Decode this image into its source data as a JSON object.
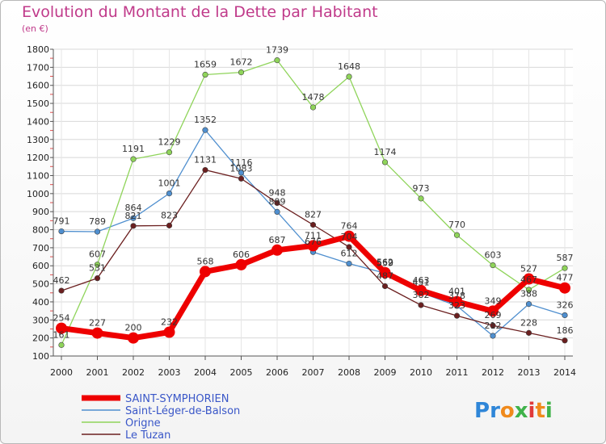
{
  "title": "Evolution du Montant de la Dette par Habitant",
  "subtitle": "(en €)",
  "brand": "Proxiti",
  "chart_data": {
    "type": "line",
    "title": "Evolution du Montant de la Dette par Habitant",
    "subtitle": "(en €)",
    "x": [
      2000,
      2001,
      2002,
      2003,
      2004,
      2005,
      2006,
      2007,
      2008,
      2009,
      2010,
      2011,
      2012,
      2013,
      2014
    ],
    "ylim": [
      100,
      1800
    ],
    "yticks": [
      100,
      200,
      300,
      400,
      500,
      600,
      700,
      800,
      900,
      1000,
      1100,
      1200,
      1300,
      1400,
      1500,
      1600,
      1700,
      1800
    ],
    "grid": true,
    "legend_position": "bottom-left",
    "series": [
      {
        "name": "SAINT-SYMPHORIEN",
        "color": "#ee0000",
        "emphasis": true,
        "values": [
          254,
          227,
          200,
          232,
          568,
          606,
          687,
          711,
          764,
          562,
          463,
          401,
          349,
          527,
          477
        ]
      },
      {
        "name": "Saint-Léger-de-Balson",
        "color": "#4f8fcf",
        "values": [
          791,
          789,
          864,
          1001,
          1352,
          1116,
          899,
          676,
          612,
          559,
          451,
          378,
          212,
          388,
          326
        ]
      },
      {
        "name": "Origne",
        "color": "#8fd45a",
        "values": [
          161,
          607,
          1191,
          1229,
          1659,
          1672,
          1739,
          1478,
          1648,
          1174,
          973,
          770,
          603,
          467,
          587
        ]
      },
      {
        "name": "Le Tuzan",
        "color": "#6b1f1f",
        "values": [
          462,
          531,
          821,
          823,
          1131,
          1083,
          948,
          827,
          704,
          487,
          382,
          323,
          269,
          228,
          186
        ]
      }
    ]
  }
}
